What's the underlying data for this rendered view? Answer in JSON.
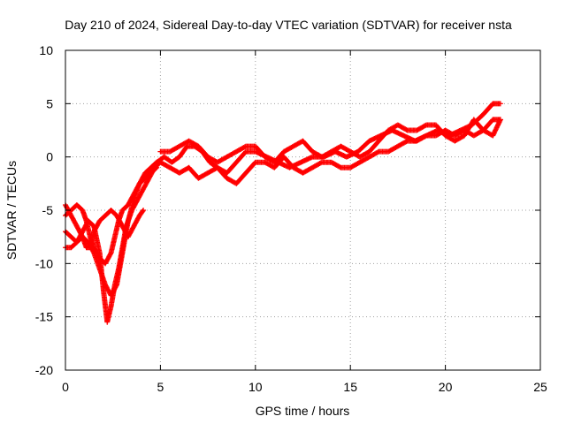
{
  "chart_data": {
    "type": "scatter",
    "title": "Day 210 of 2024, Sidereal Day-to-day VTEC variation (SDTVAR) for receiver nsta",
    "xlabel": "GPS time / hours",
    "ylabel": "SDTVAR / TECUs",
    "xlim": [
      0,
      25
    ],
    "ylim": [
      -20,
      10
    ],
    "xticks": [
      0,
      5,
      10,
      15,
      20,
      25
    ],
    "yticks": [
      -20,
      -15,
      -10,
      -5,
      0,
      5,
      10
    ],
    "xtick_labels": [
      "0",
      "5",
      "10",
      "15",
      "20",
      "25"
    ],
    "ytick_labels": [
      "-20",
      "-15",
      "-10",
      "-5",
      "0",
      "5",
      "10"
    ],
    "grid": true,
    "marker": "+",
    "color": "#ff0000",
    "series": [
      {
        "name": "track-1",
        "points": [
          [
            0.0,
            -4.5
          ],
          [
            0.3,
            -5.5
          ],
          [
            0.6,
            -6.5
          ],
          [
            0.9,
            -7.5
          ],
          [
            1.2,
            -8.0
          ],
          [
            1.5,
            -9.0
          ],
          [
            1.8,
            -10.5
          ],
          [
            2.1,
            -12.0
          ],
          [
            2.4,
            -13.0
          ],
          [
            2.7,
            -12.0
          ],
          [
            3.0,
            -9.0
          ],
          [
            3.3,
            -6.0
          ],
          [
            3.6,
            -4.0
          ],
          [
            3.9,
            -2.5
          ],
          [
            4.2,
            -1.5
          ],
          [
            4.5,
            -1.0
          ],
          [
            4.8,
            -0.5
          ],
          [
            5.2,
            0.0
          ],
          [
            5.6,
            -0.5
          ],
          [
            6.0,
            0.0
          ],
          [
            6.4,
            1.0
          ],
          [
            6.8,
            1.0
          ],
          [
            7.2,
            0.5
          ],
          [
            7.6,
            -0.5
          ],
          [
            8.0,
            -1.0
          ],
          [
            8.5,
            -1.5
          ],
          [
            9.0,
            -0.5
          ],
          [
            9.5,
            0.5
          ],
          [
            10.0,
            0.5
          ],
          [
            10.6,
            0.0
          ],
          [
            11.2,
            -0.5
          ],
          [
            11.8,
            -1.0
          ],
          [
            12.4,
            -0.5
          ],
          [
            13.0,
            0.0
          ],
          [
            13.6,
            0.0
          ],
          [
            14.2,
            0.5
          ],
          [
            14.8,
            0.0
          ],
          [
            15.4,
            0.5
          ],
          [
            16.0,
            1.5
          ],
          [
            16.6,
            2.0
          ],
          [
            17.2,
            2.5
          ],
          [
            17.8,
            2.0
          ],
          [
            18.4,
            1.5
          ],
          [
            19.0,
            2.0
          ],
          [
            19.6,
            2.5
          ],
          [
            20.2,
            2.0
          ],
          [
            20.8,
            2.5
          ],
          [
            21.4,
            3.0
          ],
          [
            22.0,
            4.0
          ],
          [
            22.5,
            5.0
          ],
          [
            22.9,
            5.0
          ]
        ]
      },
      {
        "name": "track-2",
        "points": [
          [
            0.0,
            -7.0
          ],
          [
            0.3,
            -7.5
          ],
          [
            0.6,
            -8.0
          ],
          [
            0.9,
            -7.0
          ],
          [
            1.2,
            -6.0
          ],
          [
            1.5,
            -6.5
          ],
          [
            1.8,
            -9.0
          ],
          [
            2.0,
            -12.5
          ],
          [
            2.2,
            -15.5
          ],
          [
            2.4,
            -14.0
          ],
          [
            2.6,
            -12.0
          ],
          [
            2.8,
            -10.5
          ],
          [
            3.0,
            -8.5
          ],
          [
            3.2,
            -6.5
          ],
          [
            3.5,
            -5.0
          ],
          [
            3.8,
            -4.0
          ],
          [
            4.1,
            -3.0
          ],
          [
            4.4,
            -2.0
          ],
          [
            4.7,
            -1.0
          ],
          [
            5.0,
            -0.5
          ],
          [
            5.5,
            -1.0
          ],
          [
            6.0,
            -1.5
          ],
          [
            6.5,
            -1.0
          ],
          [
            7.0,
            -2.0
          ],
          [
            7.5,
            -1.5
          ],
          [
            8.0,
            -1.0
          ],
          [
            8.5,
            -2.0
          ],
          [
            9.0,
            -2.5
          ],
          [
            9.5,
            -1.5
          ],
          [
            10.0,
            -0.5
          ],
          [
            10.5,
            -0.5
          ],
          [
            11.0,
            -1.0
          ],
          [
            11.5,
            0.0
          ],
          [
            12.0,
            -1.0
          ],
          [
            12.5,
            -1.5
          ],
          [
            13.0,
            -1.0
          ],
          [
            13.5,
            -0.5
          ],
          [
            14.0,
            -0.5
          ],
          [
            14.5,
            -1.0
          ],
          [
            15.0,
            -1.0
          ],
          [
            15.5,
            -0.5
          ],
          [
            16.0,
            0.0
          ],
          [
            16.5,
            0.5
          ],
          [
            17.0,
            0.5
          ],
          [
            17.5,
            1.0
          ],
          [
            18.0,
            1.5
          ],
          [
            18.5,
            1.5
          ],
          [
            19.0,
            2.0
          ],
          [
            19.5,
            2.0
          ],
          [
            20.0,
            2.5
          ],
          [
            20.5,
            2.0
          ],
          [
            21.0,
            2.5
          ],
          [
            21.5,
            2.0
          ],
          [
            22.0,
            2.5
          ],
          [
            22.5,
            3.5
          ],
          [
            22.9,
            3.5
          ]
        ]
      },
      {
        "name": "track-3",
        "points": [
          [
            0.0,
            -8.5
          ],
          [
            0.3,
            -8.5
          ],
          [
            0.6,
            -8.0
          ],
          [
            0.9,
            -7.5
          ],
          [
            1.1,
            -8.5
          ],
          [
            1.3,
            -8.5
          ],
          [
            1.5,
            -7.0
          ],
          [
            1.8,
            -6.0
          ],
          [
            2.1,
            -5.5
          ],
          [
            2.4,
            -5.0
          ],
          [
            2.7,
            -5.5
          ],
          [
            3.0,
            -6.5
          ],
          [
            3.3,
            -7.5
          ],
          [
            3.6,
            -6.5
          ],
          [
            3.9,
            -5.5
          ],
          [
            4.1,
            -5.0
          ]
        ]
      },
      {
        "name": "track-4",
        "points": [
          [
            0.0,
            -5.5
          ],
          [
            0.3,
            -5.0
          ],
          [
            0.6,
            -4.5
          ],
          [
            0.9,
            -5.0
          ],
          [
            1.1,
            -6.0
          ],
          [
            1.3,
            -7.5
          ],
          [
            1.5,
            -8.5
          ],
          [
            1.8,
            -9.5
          ],
          [
            2.1,
            -10.0
          ],
          [
            2.4,
            -9.0
          ],
          [
            2.6,
            -7.5
          ],
          [
            2.8,
            -6.0
          ],
          [
            3.0,
            -5.0
          ],
          [
            3.3,
            -4.5
          ],
          [
            3.6,
            -3.5
          ],
          [
            3.9,
            -2.5
          ],
          [
            4.2,
            -2.0
          ],
          [
            4.5,
            -1.5
          ],
          [
            4.8,
            -1.0
          ]
        ]
      },
      {
        "name": "track-5",
        "points": [
          [
            5.0,
            0.5
          ],
          [
            5.5,
            0.5
          ],
          [
            6.0,
            1.0
          ],
          [
            6.5,
            1.5
          ],
          [
            7.0,
            1.0
          ],
          [
            7.5,
            0.0
          ],
          [
            8.0,
            -0.5
          ],
          [
            8.5,
            0.0
          ],
          [
            9.0,
            0.5
          ],
          [
            9.5,
            1.0
          ],
          [
            10.0,
            1.0
          ],
          [
            10.5,
            0.0
          ],
          [
            11.0,
            -0.5
          ],
          [
            11.5,
            0.5
          ],
          [
            12.0,
            1.0
          ],
          [
            12.5,
            1.5
          ],
          [
            13.0,
            0.5
          ],
          [
            13.5,
            0.0
          ],
          [
            14.0,
            0.5
          ],
          [
            14.5,
            1.0
          ],
          [
            15.0,
            0.5
          ],
          [
            15.5,
            0.0
          ],
          [
            16.0,
            0.5
          ],
          [
            16.5,
            1.5
          ],
          [
            17.0,
            2.5
          ],
          [
            17.5,
            3.0
          ],
          [
            18.0,
            2.5
          ],
          [
            18.5,
            2.5
          ],
          [
            19.0,
            3.0
          ],
          [
            19.5,
            3.0
          ],
          [
            20.0,
            2.0
          ],
          [
            20.5,
            1.5
          ],
          [
            21.0,
            2.0
          ],
          [
            21.5,
            3.5
          ],
          [
            22.0,
            2.5
          ],
          [
            22.5,
            2.0
          ],
          [
            22.9,
            3.5
          ]
        ]
      }
    ]
  }
}
